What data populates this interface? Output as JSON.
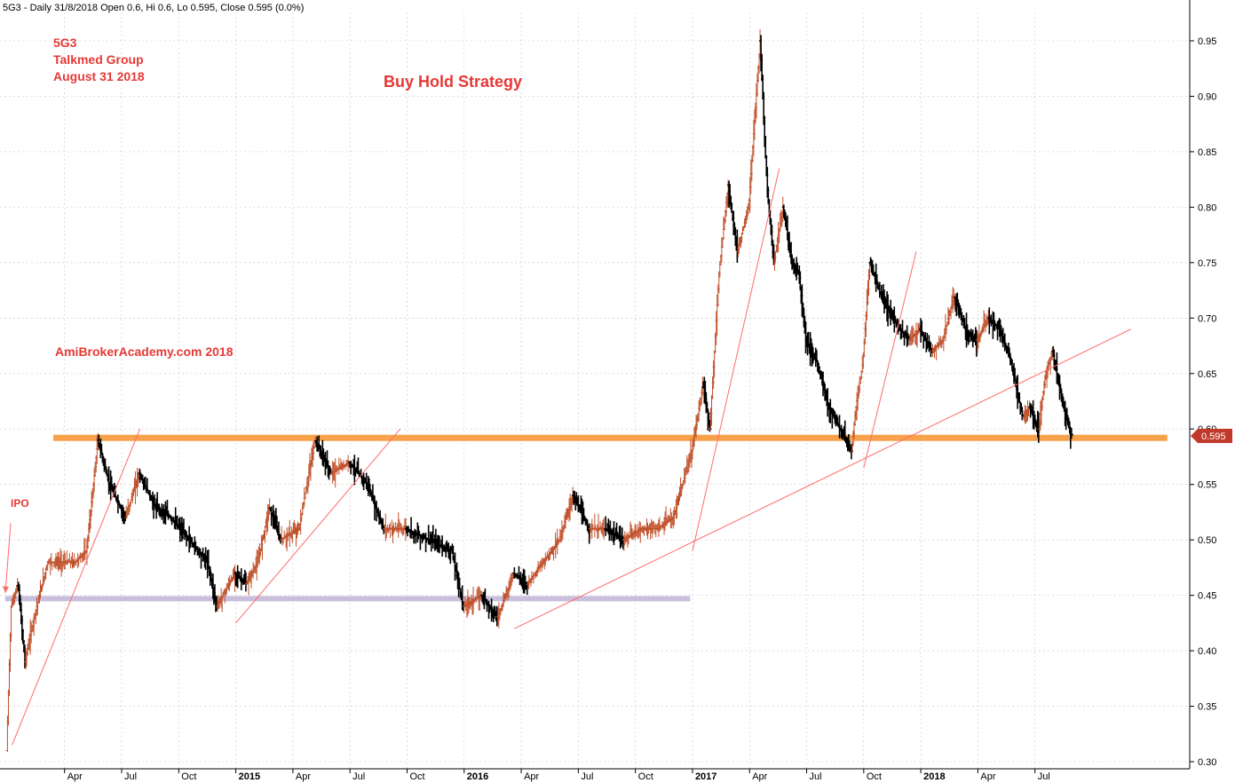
{
  "header": "5G3 - Daily 31/8/2018 Open 0.6, Hi 0.6, Lo 0.595, Close 0.595 (0.0%)",
  "annotations": {
    "ticker": "5G3",
    "company": "Talkmed Group",
    "date": "August 31 2018",
    "strategy": "Buy Hold Strategy",
    "watermark": "AmiBrokerAcademy.com  2018",
    "ipo": "IPO",
    "last_price": "0.595"
  },
  "colors": {
    "up": "#c0502a",
    "down": "#000000",
    "trend": "#ff6b6b",
    "support": "#f7a24a",
    "ipo_level": "#c9bfdc",
    "text_red": "#e53935",
    "grid": "#c8c8c8"
  },
  "chart_data": {
    "type": "ohlc",
    "ylim": [
      0.3,
      0.95
    ],
    "yticks": [
      "0.30",
      "0.35",
      "0.40",
      "0.45",
      "0.50",
      "0.55",
      "0.60",
      "0.65",
      "0.70",
      "0.75",
      "0.80",
      "0.85",
      "0.90",
      "0.95"
    ],
    "xticks": [
      {
        "label": "Apr",
        "t": 2014.25,
        "bold": false
      },
      {
        "label": "Jul",
        "t": 2014.5,
        "bold": false
      },
      {
        "label": "Oct",
        "t": 2014.75,
        "bold": false
      },
      {
        "label": "2015",
        "t": 2015.0,
        "bold": true
      },
      {
        "label": "Apr",
        "t": 2015.25,
        "bold": false
      },
      {
        "label": "Jul",
        "t": 2015.5,
        "bold": false
      },
      {
        "label": "Oct",
        "t": 2015.75,
        "bold": false
      },
      {
        "label": "2016",
        "t": 2016.0,
        "bold": true
      },
      {
        "label": "Apr",
        "t": 2016.25,
        "bold": false
      },
      {
        "label": "Jul",
        "t": 2016.5,
        "bold": false
      },
      {
        "label": "Oct",
        "t": 2016.75,
        "bold": false
      },
      {
        "label": "2017",
        "t": 2017.0,
        "bold": true
      },
      {
        "label": "Apr",
        "t": 2017.25,
        "bold": false
      },
      {
        "label": "Jul",
        "t": 2017.5,
        "bold": false
      },
      {
        "label": "Oct",
        "t": 2017.75,
        "bold": false
      },
      {
        "label": "2018",
        "t": 2018.0,
        "bold": true
      },
      {
        "label": "Apr",
        "t": 2018.25,
        "bold": false
      },
      {
        "label": "Jul",
        "t": 2018.5,
        "bold": false
      }
    ],
    "price_path": [
      [
        2014.0,
        0.31
      ],
      [
        2014.02,
        0.44
      ],
      [
        2014.05,
        0.46
      ],
      [
        2014.08,
        0.39
      ],
      [
        2014.12,
        0.43
      ],
      [
        2014.18,
        0.48
      ],
      [
        2014.3,
        0.48
      ],
      [
        2014.35,
        0.49
      ],
      [
        2014.4,
        0.59
      ],
      [
        2014.45,
        0.55
      ],
      [
        2014.52,
        0.52
      ],
      [
        2014.58,
        0.56
      ],
      [
        2014.65,
        0.53
      ],
      [
        2014.72,
        0.52
      ],
      [
        2014.8,
        0.5
      ],
      [
        2014.88,
        0.48
      ],
      [
        2014.92,
        0.44
      ],
      [
        2015.0,
        0.47
      ],
      [
        2015.05,
        0.46
      ],
      [
        2015.1,
        0.48
      ],
      [
        2015.15,
        0.53
      ],
      [
        2015.2,
        0.5
      ],
      [
        2015.28,
        0.51
      ],
      [
        2015.35,
        0.59
      ],
      [
        2015.42,
        0.56
      ],
      [
        2015.5,
        0.57
      ],
      [
        2015.58,
        0.55
      ],
      [
        2015.65,
        0.51
      ],
      [
        2015.75,
        0.51
      ],
      [
        2015.85,
        0.5
      ],
      [
        2015.95,
        0.49
      ],
      [
        2016.0,
        0.44
      ],
      [
        2016.08,
        0.45
      ],
      [
        2016.15,
        0.43
      ],
      [
        2016.22,
        0.47
      ],
      [
        2016.28,
        0.46
      ],
      [
        2016.35,
        0.48
      ],
      [
        2016.42,
        0.5
      ],
      [
        2016.48,
        0.54
      ],
      [
        2016.55,
        0.51
      ],
      [
        2016.62,
        0.51
      ],
      [
        2016.7,
        0.5
      ],
      [
        2016.78,
        0.51
      ],
      [
        2016.85,
        0.51
      ],
      [
        2016.92,
        0.52
      ],
      [
        2017.0,
        0.58
      ],
      [
        2017.05,
        0.64
      ],
      [
        2017.08,
        0.6
      ],
      [
        2017.12,
        0.74
      ],
      [
        2017.16,
        0.82
      ],
      [
        2017.2,
        0.76
      ],
      [
        2017.25,
        0.8
      ],
      [
        2017.3,
        0.95
      ],
      [
        2017.33,
        0.82
      ],
      [
        2017.36,
        0.75
      ],
      [
        2017.4,
        0.8
      ],
      [
        2017.44,
        0.75
      ],
      [
        2017.47,
        0.74
      ],
      [
        2017.5,
        0.68
      ],
      [
        2017.55,
        0.66
      ],
      [
        2017.6,
        0.62
      ],
      [
        2017.65,
        0.6
      ],
      [
        2017.7,
        0.58
      ],
      [
        2017.72,
        0.62
      ],
      [
        2017.75,
        0.66
      ],
      [
        2017.78,
        0.75
      ],
      [
        2017.83,
        0.72
      ],
      [
        2017.88,
        0.7
      ],
      [
        2017.95,
        0.68
      ],
      [
        2018.0,
        0.69
      ],
      [
        2018.05,
        0.67
      ],
      [
        2018.1,
        0.68
      ],
      [
        2018.15,
        0.72
      ],
      [
        2018.2,
        0.69
      ],
      [
        2018.25,
        0.68
      ],
      [
        2018.3,
        0.7
      ],
      [
        2018.35,
        0.69
      ],
      [
        2018.4,
        0.66
      ],
      [
        2018.45,
        0.61
      ],
      [
        2018.48,
        0.62
      ],
      [
        2018.52,
        0.6
      ],
      [
        2018.55,
        0.65
      ],
      [
        2018.58,
        0.67
      ],
      [
        2018.62,
        0.63
      ],
      [
        2018.66,
        0.595
      ]
    ],
    "trendlines": [
      [
        2014.02,
        0.315,
        2014.58,
        0.6
      ],
      [
        2015.0,
        0.425,
        2015.72,
        0.6
      ],
      [
        2016.22,
        0.42,
        2018.92,
        0.69
      ],
      [
        2017.0,
        0.49,
        2017.38,
        0.835
      ],
      [
        2017.75,
        0.565,
        2017.98,
        0.76
      ]
    ],
    "support_level": 0.592,
    "support_range": [
      2013.99,
      2019.08
    ],
    "ipo_level": 0.447,
    "ipo_range": [
      2013.99,
      2016.99
    ]
  }
}
